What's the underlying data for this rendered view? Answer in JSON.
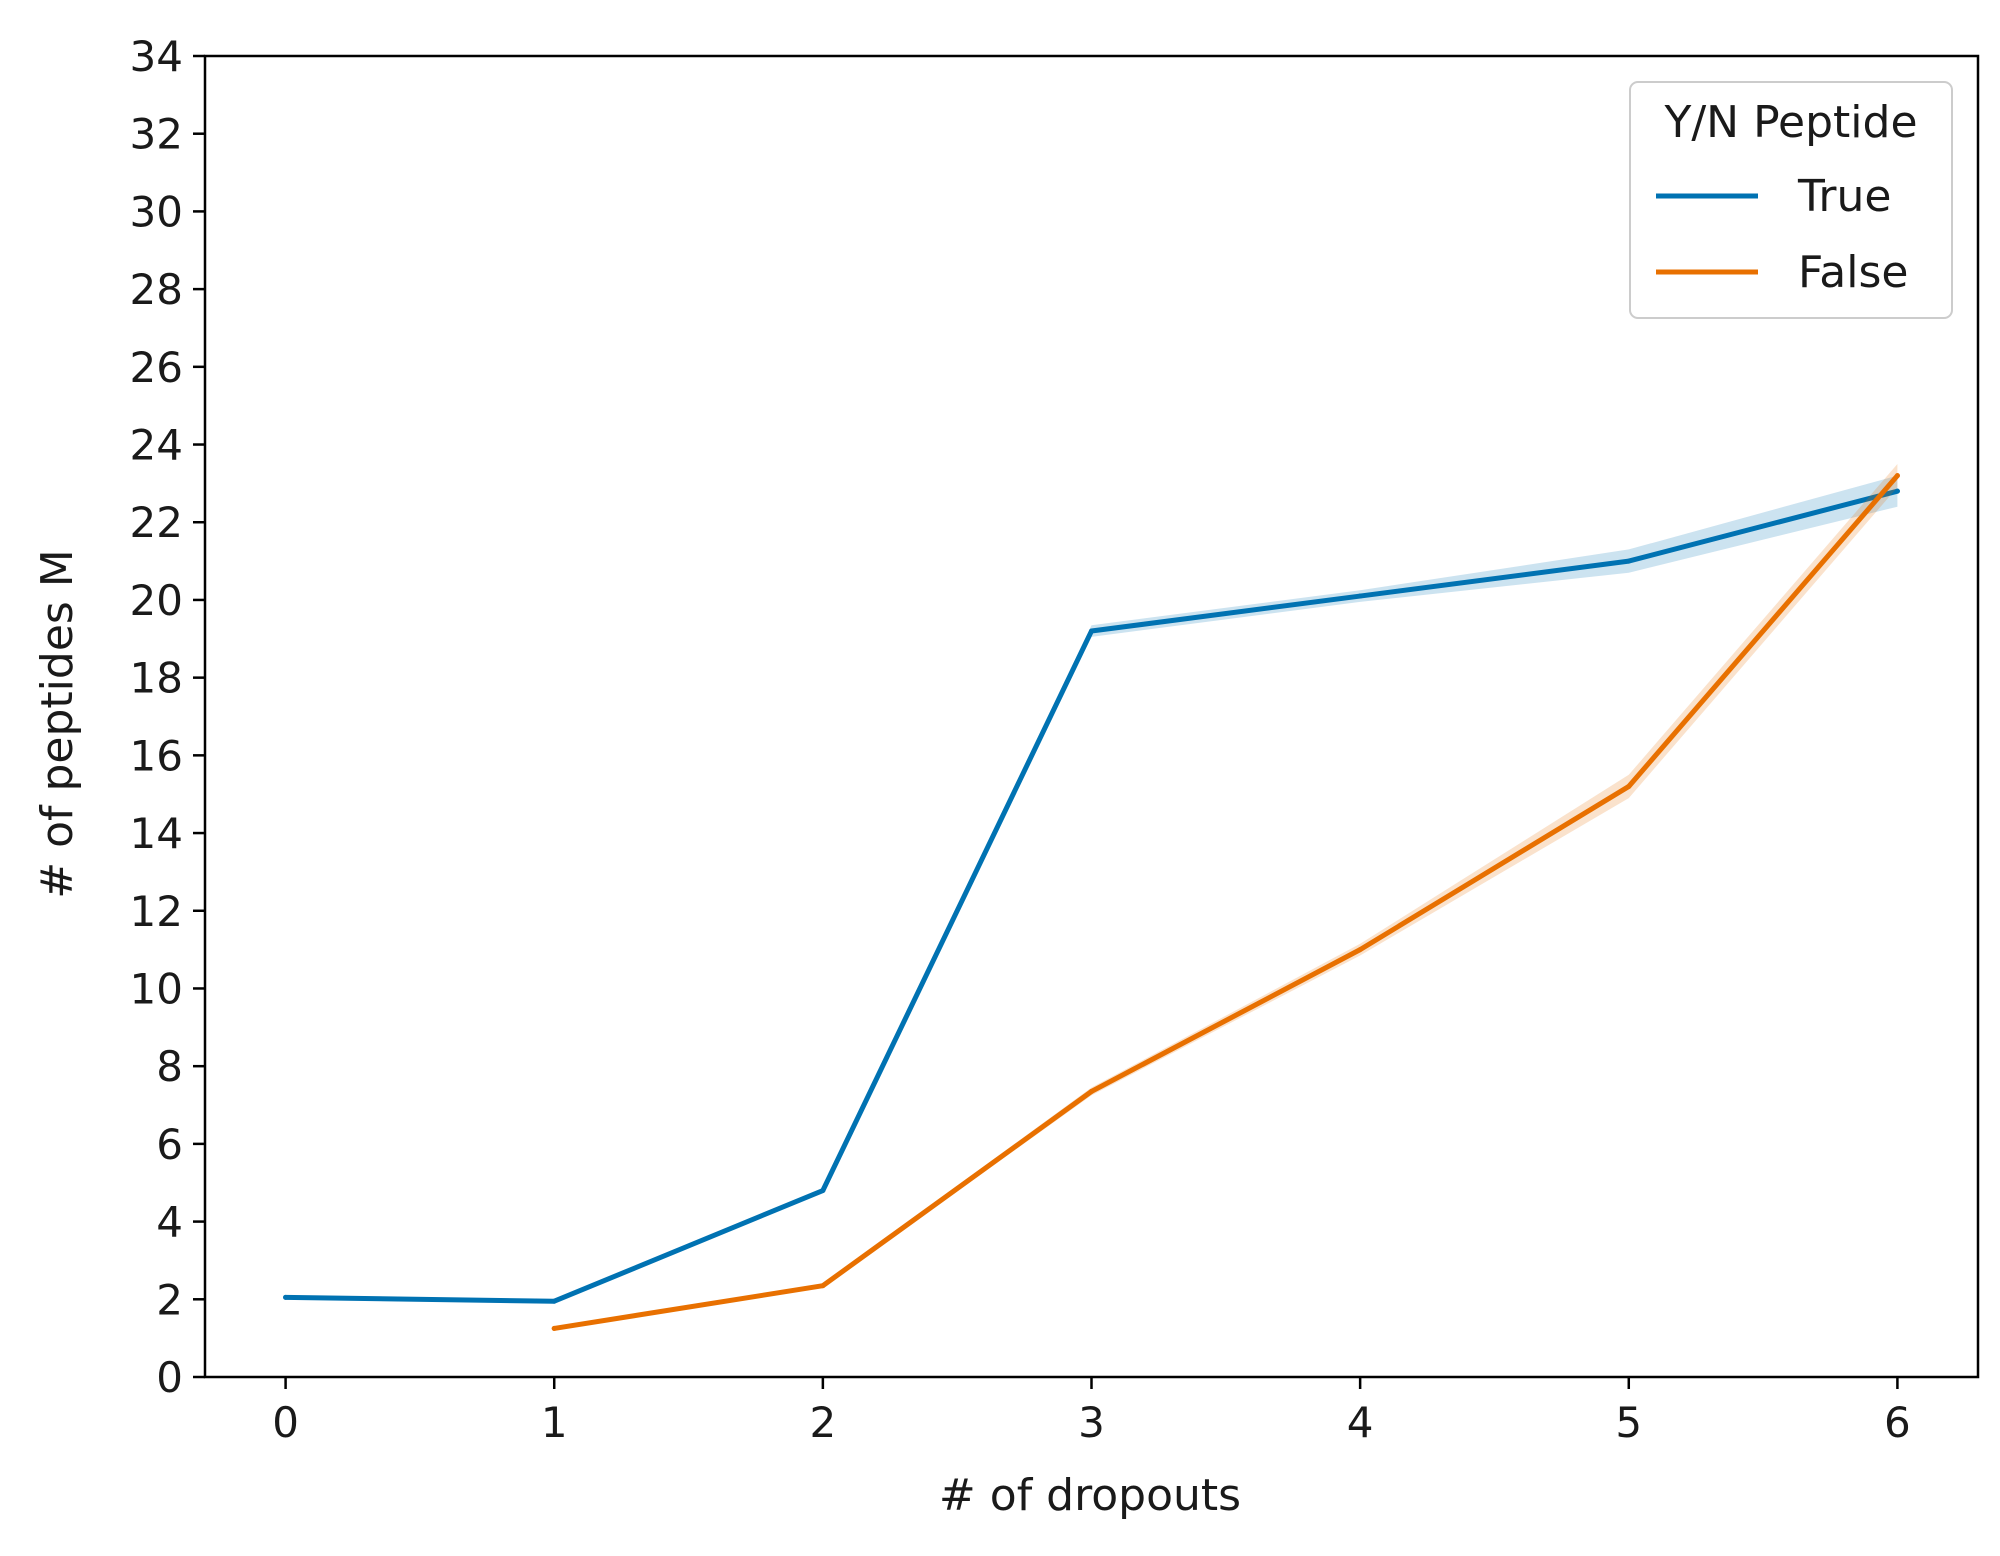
{
  "chart_data": {
    "type": "line",
    "xlabel": "# of dropouts",
    "ylabel": "# of peptides M",
    "xlim": [
      -0.3,
      6.3
    ],
    "ylim": [
      0,
      34
    ],
    "xticks": [
      0,
      1,
      2,
      3,
      4,
      5,
      6
    ],
    "yticks": [
      0,
      2,
      4,
      6,
      8,
      10,
      12,
      14,
      16,
      18,
      20,
      22,
      24,
      26,
      28,
      30,
      32,
      34
    ],
    "grid": false,
    "legend": {
      "title": "Y/N Peptide",
      "placement": "top-right",
      "entries": [
        "True",
        "False"
      ]
    },
    "series": [
      {
        "name": "True",
        "color": "#0072b2",
        "x": [
          0,
          1,
          2,
          3,
          4,
          5,
          6
        ],
        "y": [
          2.05,
          1.95,
          4.8,
          19.2,
          20.1,
          21.0,
          22.8
        ],
        "ci_lower": [
          2.0,
          1.9,
          4.75,
          19.05,
          19.95,
          20.7,
          22.4
        ],
        "ci_upper": [
          2.1,
          2.0,
          4.85,
          19.35,
          20.25,
          21.3,
          23.2
        ]
      },
      {
        "name": "False",
        "color": "#e87000",
        "x": [
          1,
          2,
          3,
          4,
          5,
          6
        ],
        "y": [
          1.25,
          2.35,
          7.35,
          11.0,
          15.2,
          23.2
        ],
        "ci_lower": [
          1.2,
          2.3,
          7.25,
          10.85,
          14.9,
          22.9
        ],
        "ci_upper": [
          1.3,
          2.4,
          7.45,
          11.15,
          15.5,
          23.5
        ]
      }
    ]
  }
}
